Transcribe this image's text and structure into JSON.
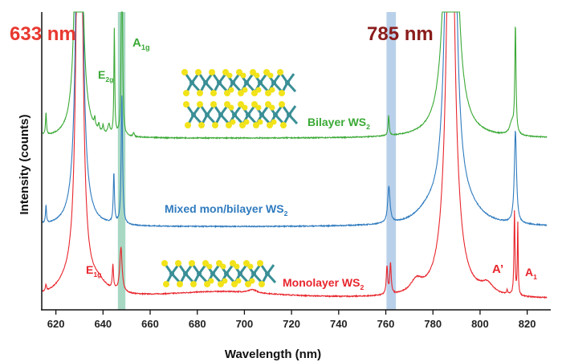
{
  "chart_data": {
    "type": "line",
    "xlabel": "Wavelength (nm)",
    "ylabel": "Intensity (counts)",
    "xlim": [
      614,
      830
    ],
    "ylim": [
      -0.13,
      3.57
    ],
    "xticks": [
      620,
      640,
      660,
      680,
      700,
      720,
      740,
      760,
      780,
      800,
      820
    ],
    "grid": false,
    "excitation_labels": [
      {
        "text": "633 nm",
        "color": "#e8382f"
      },
      {
        "text": "785 nm",
        "color": "#8b1c1c"
      }
    ],
    "highlight_bands": [
      {
        "from": 646.3,
        "to": 649.5,
        "color": "#a8d8c4"
      },
      {
        "from": 760.3,
        "to": 764.3,
        "color": "#b9d0ea"
      }
    ],
    "series": [
      {
        "name": "Bilayer WS2",
        "color": "#3aa935",
        "offset": 2.0,
        "baseline_slope": 0,
        "peaks": [
          {
            "x": 613.5,
            "h": 0.3,
            "w": 0.25
          },
          {
            "x": 615.8,
            "h": 0.28,
            "w": 0.25
          },
          {
            "x": 629.7,
            "h": 10,
            "w": 0.9
          },
          {
            "x": 636.5,
            "h": 0.1,
            "w": 0.3
          },
          {
            "x": 638.2,
            "h": 0.08,
            "w": 0.3
          },
          {
            "x": 640,
            "h": 0.09,
            "w": 0.3
          },
          {
            "x": 642.5,
            "h": 0.12,
            "w": 0.5
          },
          {
            "x": 644.8,
            "h": 1.32,
            "w": 0.22
          },
          {
            "x": 648.0,
            "h": 3.5,
            "w": 0.25
          },
          {
            "x": 653,
            "h": 0.05,
            "w": 0.3
          },
          {
            "x": 761.2,
            "h": 0.25,
            "w": 0.3
          },
          {
            "x": 787.6,
            "h": 10,
            "w": 1.6
          },
          {
            "x": 813.5,
            "h": 0.15,
            "w": 1.2
          },
          {
            "x": 815.0,
            "h": 1.33,
            "w": 0.3
          }
        ]
      },
      {
        "name": "Mixed mon/bilayer WS2",
        "color": "#2f7bbf",
        "offset": 0.9,
        "peaks": [
          {
            "x": 613.5,
            "h": 0.22,
            "w": 0.25
          },
          {
            "x": 615.8,
            "h": 0.22,
            "w": 0.25
          },
          {
            "x": 630.0,
            "h": 10,
            "w": 1.0
          },
          {
            "x": 644.6,
            "h": 0.62,
            "w": 0.3
          },
          {
            "x": 648.0,
            "h": 1.6,
            "w": 0.35
          },
          {
            "x": 761.3,
            "h": 0.45,
            "w": 0.6
          },
          {
            "x": 778,
            "h": 0.12,
            "w": 6
          },
          {
            "x": 787.6,
            "h": 10,
            "w": 1.6
          },
          {
            "x": 796,
            "h": 0.1,
            "w": 6
          },
          {
            "x": 815.0,
            "h": 1.15,
            "w": 0.55
          }
        ]
      },
      {
        "name": "Monolayer WS2",
        "color": "#e8262d",
        "offset": 0.0,
        "peaks": [
          {
            "x": 613.5,
            "h": 0.1,
            "w": 0.3
          },
          {
            "x": 615.8,
            "h": 0.08,
            "w": 0.3
          },
          {
            "x": 625,
            "h": 0.12,
            "w": 6
          },
          {
            "x": 630.0,
            "h": 9,
            "w": 1.1
          },
          {
            "x": 638,
            "h": 0.12,
            "w": 4
          },
          {
            "x": 644.2,
            "h": 0.3,
            "w": 0.3
          },
          {
            "x": 647.6,
            "h": 0.55,
            "w": 0.6
          },
          {
            "x": 690,
            "h": 0.09,
            "w": 30
          },
          {
            "x": 703.5,
            "h": 0.04,
            "w": 2
          },
          {
            "x": 760.5,
            "h": 0.35,
            "w": 0.35
          },
          {
            "x": 762.0,
            "h": 0.38,
            "w": 0.35
          },
          {
            "x": 773,
            "h": 0.15,
            "w": 3
          },
          {
            "x": 787.5,
            "h": 3.4,
            "w": 2.6
          },
          {
            "x": 787.5,
            "h": 10,
            "w": 0.6
          },
          {
            "x": 803,
            "h": 0.12,
            "w": 3
          },
          {
            "x": 811.5,
            "h": 0.05,
            "w": 0.3
          },
          {
            "x": 814.6,
            "h": 1.05,
            "w": 0.25
          },
          {
            "x": 816.0,
            "h": 0.9,
            "w": 0.2
          }
        ]
      }
    ],
    "annotations": [
      {
        "base": "A",
        "sub": "1g",
        "color": "#3aa935"
      },
      {
        "base": "E",
        "sub": "2g",
        "color": "#3aa935"
      },
      {
        "base": "Bilayer WS",
        "sub": "2",
        "color": "#3aa935"
      },
      {
        "base": "Mixed mon/bilayer WS",
        "sub": "2",
        "color": "#2f7bbf"
      },
      {
        "base": "E",
        "sub": "1g",
        "color": "#e8262d"
      },
      {
        "base": "Monolayer WS",
        "sub": "2",
        "color": "#e8262d"
      },
      {
        "base": "A’",
        "sub": "",
        "color": "#e8262d"
      },
      {
        "base": "A",
        "sub": "1",
        "color": "#e8262d"
      }
    ]
  },
  "colors": {
    "sulfur": "#f2e31a",
    "tungsten": "#3a8f96"
  }
}
